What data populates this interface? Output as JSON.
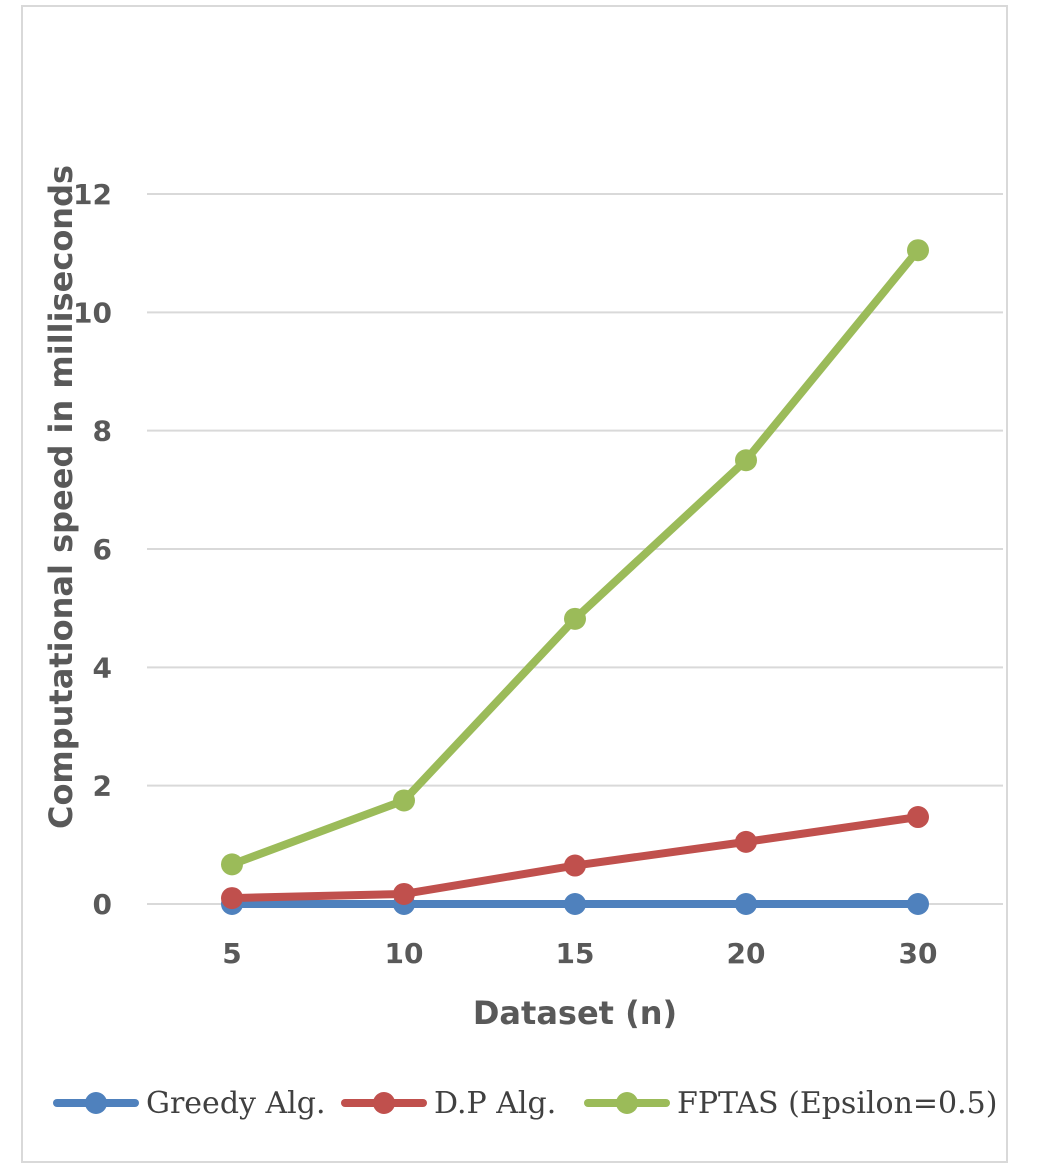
{
  "chart_data": {
    "type": "line",
    "title": "",
    "xlabel": "Dataset (n)",
    "ylabel": "Computational speed in milliseconds",
    "categories": [
      "5",
      "10",
      "15",
      "20",
      "30"
    ],
    "ylim": [
      0,
      12
    ],
    "yticks": [
      "0",
      "2",
      "4",
      "6",
      "8",
      "10",
      "12"
    ],
    "grid": true,
    "legend_position": "bottom",
    "series": [
      {
        "name": "Greedy Alg.",
        "color": "#4f81bd",
        "values": [
          0.0,
          0.0,
          0.0,
          0.0,
          0.0
        ]
      },
      {
        "name": "D.P Alg.",
        "color": "#c0504d",
        "values": [
          0.1,
          0.17,
          0.65,
          1.05,
          1.47
        ]
      },
      {
        "name": "FPTAS (Epsilon=0.5)",
        "color": "#9bbb59",
        "values": [
          0.67,
          1.75,
          4.82,
          7.5,
          11.05
        ]
      }
    ]
  }
}
